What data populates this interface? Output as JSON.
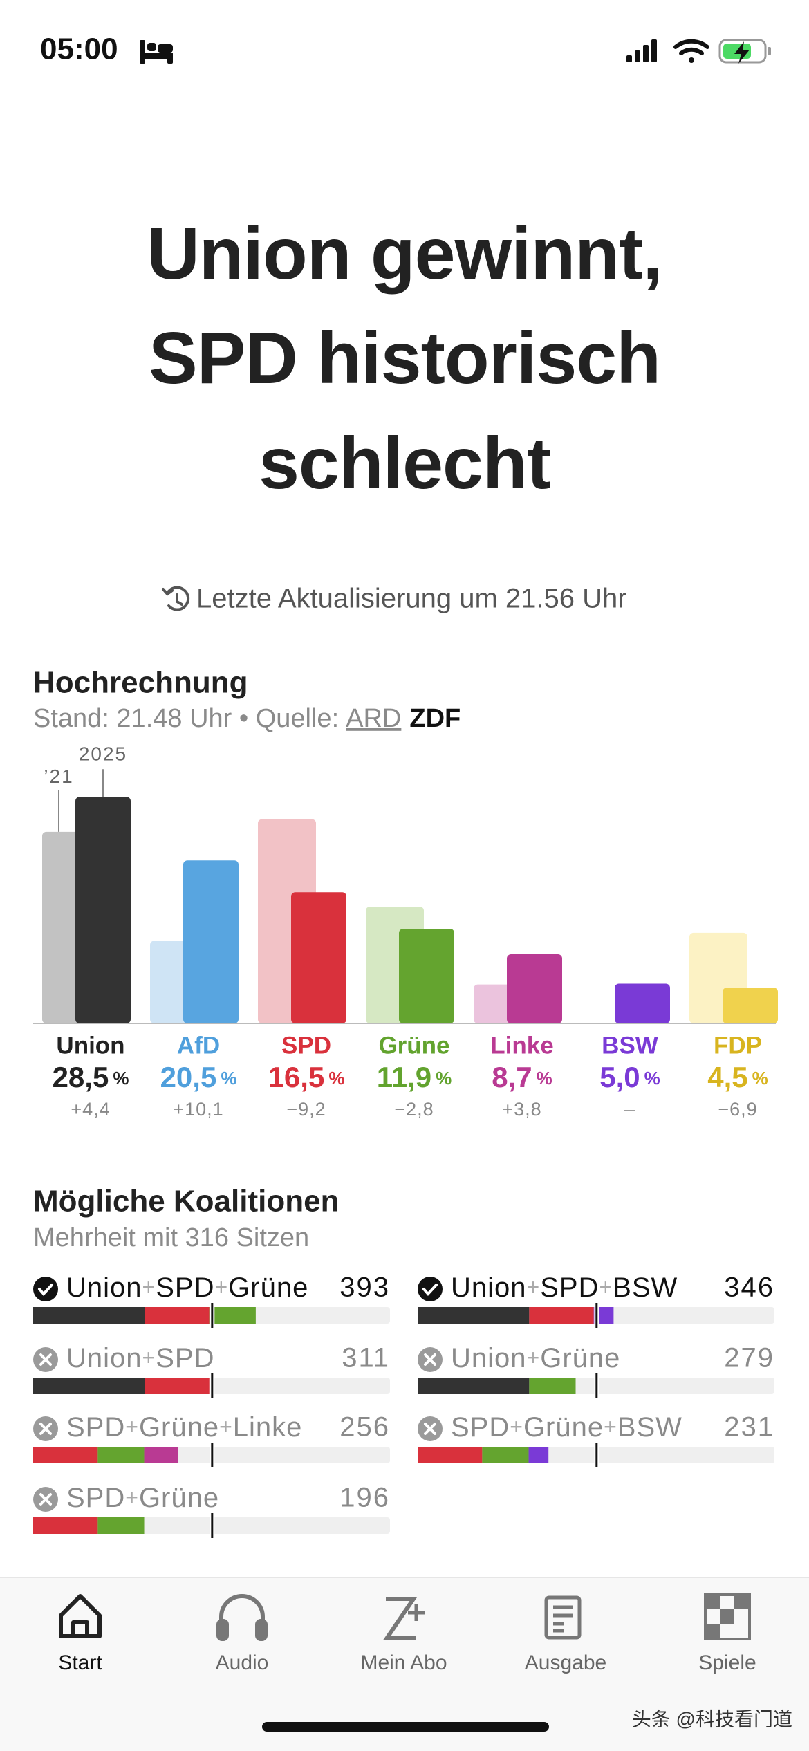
{
  "status_bar": {
    "time": "05:00"
  },
  "headline": [
    "Union gewinnt,",
    "SPD historisch",
    "schlecht"
  ],
  "update": "Letzte Aktualisierung um 21.56 Uhr",
  "chart_data": {
    "type": "bar",
    "title": "Hochrechnung",
    "subtitle": "Stand: 21.48 Uhr • Quelle:",
    "sources": [
      "ARD",
      "ZDF"
    ],
    "categories": [
      "Union",
      "AfD",
      "SPD",
      "Grüne",
      "Linke",
      "BSW",
      "FDP"
    ],
    "category_colors": [
      "#222222",
      "#4f9fdc",
      "#d9313c",
      "#62a32e",
      "#b93a93",
      "#7a3ad6",
      "#d8b41f"
    ],
    "series": [
      {
        "name": "’21",
        "colors": [
          "#c2c2c2",
          "#cfe4f5",
          "#f2c2c6",
          "#d6e8c3",
          "#ebc3dd",
          "#e0d3f5",
          "#fcf2c4"
        ],
        "values": [
          24.1,
          10.4,
          25.7,
          14.7,
          4.9,
          null,
          11.4
        ]
      },
      {
        "name": "2025",
        "colors": [
          "#333333",
          "#58a5e0",
          "#d9313c",
          "#64a42f",
          "#b93a93",
          "#7a3ad6",
          "#f0d24d"
        ],
        "values": [
          28.5,
          20.5,
          16.5,
          11.9,
          8.7,
          5.0,
          4.5
        ],
        "value_labels": [
          "28,5",
          "20,5",
          "16,5",
          "11,9",
          "8,7",
          "5,0",
          "4,5"
        ]
      }
    ],
    "unit": "%",
    "changes": [
      4.4,
      10.1,
      -9.2,
      -2.8,
      3.8,
      null,
      -6.9
    ],
    "change_labels": [
      "+4,4",
      "+10,1",
      "−9,2",
      "−2,8",
      "+3,8",
      "–",
      "−6,9"
    ],
    "ylim": [
      0,
      30
    ]
  },
  "coalitions": {
    "title": "Mögliche Koalitionen",
    "subtitle": "Mehrheit mit 316 Sitzen",
    "majority": 316,
    "seat_scale": [
      0,
      630
    ],
    "separator": "+",
    "parties": [
      {
        "name": "Union",
        "seats": 197,
        "color": "#333333"
      },
      {
        "name": "SPD",
        "seats": 114,
        "color": "#d9313c"
      },
      {
        "name": "Grüne",
        "seats": 82,
        "color": "#64a42f"
      },
      {
        "name": "Linke",
        "seats": 60,
        "color": "#b93a93"
      },
      {
        "name": "BSW",
        "seats": 35,
        "color": "#7a3ad6"
      }
    ],
    "items": [
      {
        "members": [
          "Union",
          "SPD",
          "Grüne"
        ],
        "seats": 393,
        "majority": true
      },
      {
        "members": [
          "Union",
          "SPD",
          "BSW"
        ],
        "seats": 346,
        "majority": true
      },
      {
        "members": [
          "Union",
          "SPD"
        ],
        "seats": 311,
        "majority": false
      },
      {
        "members": [
          "Union",
          "Grüne"
        ],
        "seats": 279,
        "majority": false
      },
      {
        "members": [
          "SPD",
          "Grüne",
          "Linke"
        ],
        "seats": 256,
        "majority": false
      },
      {
        "members": [
          "SPD",
          "Grüne",
          "BSW"
        ],
        "seats": 231,
        "majority": false
      },
      {
        "members": [
          "SPD",
          "Grüne"
        ],
        "seats": 196,
        "majority": false
      }
    ]
  },
  "nav": {
    "tabs": [
      "Start",
      "Audio",
      "Mein Abo",
      "Ausgabe",
      "Spiele"
    ],
    "active": 0
  },
  "watermark": "头条 @科技看门道"
}
